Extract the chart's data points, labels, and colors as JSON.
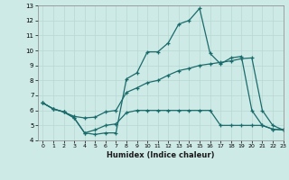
{
  "xlabel": "Humidex (Indice chaleur)",
  "xlim": [
    -0.5,
    23
  ],
  "ylim": [
    4,
    13
  ],
  "xticks": [
    0,
    1,
    2,
    3,
    4,
    5,
    6,
    7,
    8,
    9,
    10,
    11,
    12,
    13,
    14,
    15,
    16,
    17,
    18,
    19,
    20,
    21,
    22,
    23
  ],
  "yticks": [
    4,
    5,
    6,
    7,
    8,
    9,
    10,
    11,
    12,
    13
  ],
  "bg_color": "#ceeae6",
  "grid_color": "#b8d8d4",
  "line_color": "#1a6b6b",
  "line1_x": [
    0,
    1,
    2,
    3,
    4,
    5,
    6,
    7,
    8,
    9,
    10,
    11,
    12,
    13,
    14,
    15,
    16,
    17,
    18,
    19,
    20,
    21,
    22,
    23
  ],
  "line1_y": [
    6.5,
    6.1,
    5.9,
    5.5,
    4.5,
    4.4,
    4.5,
    4.5,
    8.1,
    8.5,
    9.9,
    9.9,
    10.5,
    11.75,
    12.0,
    12.8,
    9.8,
    9.1,
    9.5,
    9.6,
    6.0,
    5.0,
    4.75,
    4.7
  ],
  "line2_x": [
    0,
    1,
    2,
    3,
    4,
    5,
    6,
    7,
    8,
    9,
    10,
    11,
    12,
    13,
    14,
    15,
    16,
    17,
    18,
    19,
    20,
    21,
    22,
    23
  ],
  "line2_y": [
    6.5,
    6.1,
    5.9,
    5.6,
    5.5,
    5.55,
    5.9,
    6.0,
    7.2,
    7.5,
    7.85,
    8.0,
    8.35,
    8.65,
    8.8,
    9.0,
    9.1,
    9.2,
    9.3,
    9.45,
    9.5,
    6.0,
    5.0,
    4.7
  ],
  "line3_x": [
    0,
    1,
    2,
    3,
    4,
    5,
    6,
    7,
    8,
    9,
    10,
    11,
    12,
    13,
    14,
    15,
    16,
    17,
    18,
    19,
    20,
    21,
    22,
    23
  ],
  "line3_y": [
    6.5,
    6.1,
    5.9,
    5.5,
    4.5,
    4.7,
    5.0,
    5.1,
    5.85,
    6.0,
    6.0,
    6.0,
    6.0,
    6.0,
    6.0,
    6.0,
    6.0,
    5.0,
    5.0,
    5.0,
    5.0,
    5.0,
    4.75,
    4.7
  ]
}
